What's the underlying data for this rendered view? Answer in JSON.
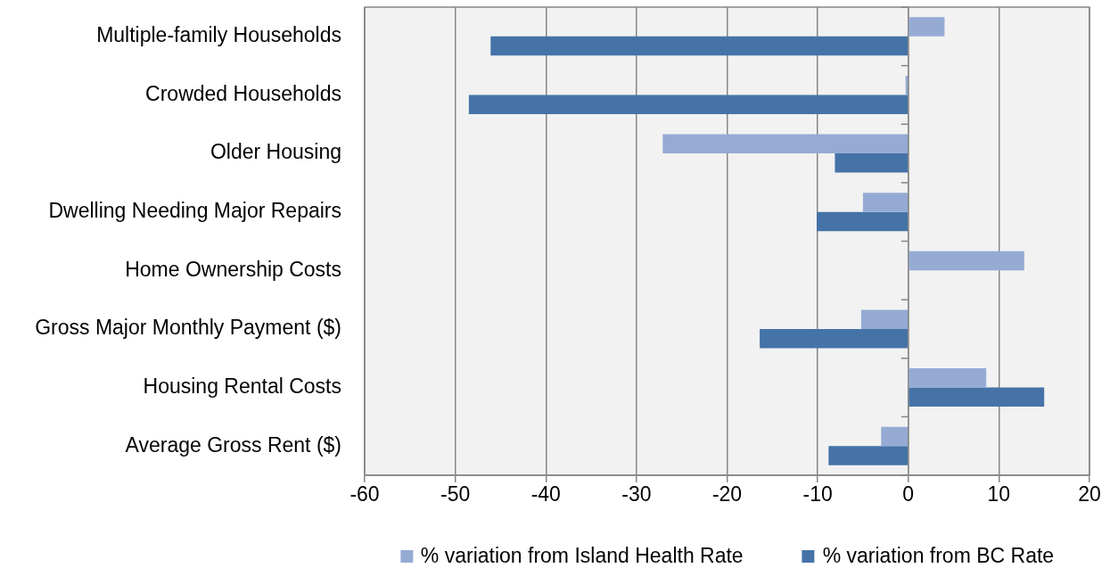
{
  "chart_data": {
    "type": "bar",
    "orientation": "horizontal",
    "categories": [
      "Multiple-family Households",
      "Crowded Households",
      "Older Housing",
      "Dwelling Needing Major Repairs",
      "Home Ownership Costs",
      "Gross Major Monthly Payment ($)",
      "Housing Rental Costs",
      "Average Gross Rent ($)"
    ],
    "series": [
      {
        "name": "% variation from Island Health Rate",
        "color": "#95abd4",
        "values": [
          4,
          -0.3,
          -27.1,
          -5,
          12.8,
          -5.2,
          8.6,
          -3
        ]
      },
      {
        "name": "% variation from BC Rate",
        "color": "#4573a8",
        "values": [
          -46.1,
          -48.5,
          -8.1,
          -10.1,
          null,
          -16.4,
          15,
          -8.8
        ]
      }
    ],
    "xlim": [
      -60,
      20
    ],
    "xticks": [
      -60,
      -50,
      -40,
      -30,
      -20,
      -10,
      0,
      10,
      20
    ],
    "grid": "x",
    "legend": "bottom"
  }
}
